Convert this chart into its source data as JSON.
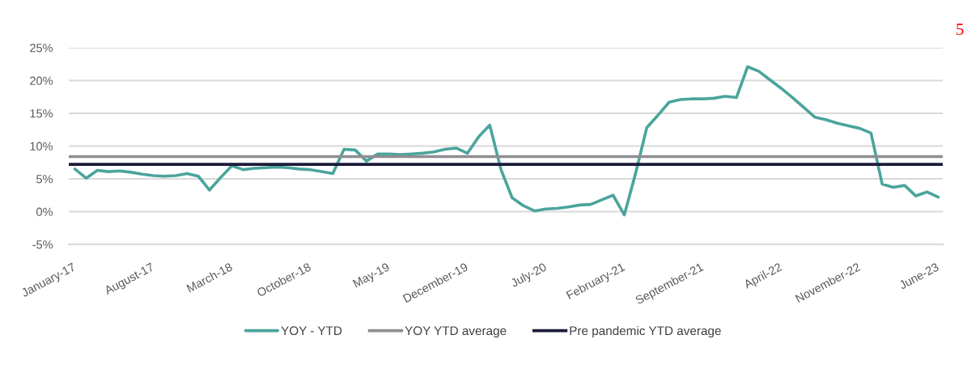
{
  "chart_data": {
    "type": "line",
    "categories": [
      "January-17",
      null,
      null,
      null,
      null,
      null,
      null,
      "August-17",
      null,
      null,
      null,
      null,
      null,
      null,
      "March-18",
      null,
      null,
      null,
      null,
      null,
      null,
      "October-18",
      null,
      null,
      null,
      null,
      null,
      null,
      "May-19",
      null,
      null,
      null,
      null,
      null,
      null,
      "December-19",
      null,
      null,
      null,
      null,
      null,
      null,
      "July-20",
      null,
      null,
      null,
      null,
      null,
      null,
      "February-21",
      null,
      null,
      null,
      null,
      null,
      null,
      "September-21",
      null,
      null,
      null,
      null,
      null,
      null,
      "April-22",
      null,
      null,
      null,
      null,
      null,
      null,
      "November-22",
      null,
      null,
      null,
      null,
      null,
      null,
      "June-23"
    ],
    "series": [
      {
        "name": "YOY - YTD",
        "color": "#4aa59c",
        "values": [
          6.5,
          5.1,
          6.3,
          6.1,
          6.2,
          6.0,
          5.7,
          5.5,
          5.4,
          5.5,
          5.8,
          5.4,
          3.3,
          5.2,
          7.0,
          6.4,
          6.6,
          6.7,
          6.8,
          6.7,
          6.5,
          6.4,
          6.1,
          5.8,
          9.5,
          9.4,
          7.7,
          8.8,
          8.8,
          8.7,
          8.8,
          8.9,
          9.1,
          9.5,
          9.7,
          8.9,
          11.4,
          13.2,
          6.4,
          2.1,
          0.9,
          0.1,
          0.4,
          0.5,
          0.7,
          1.0,
          1.1,
          1.8,
          2.5,
          -0.5,
          5.8,
          12.8,
          14.7,
          16.7,
          17.1,
          17.2,
          17.2,
          17.3,
          17.6,
          17.4,
          22.1,
          21.4,
          20.1,
          18.8,
          17.4,
          15.9,
          14.4,
          14.0,
          13.5,
          13.1,
          12.7,
          12.0,
          4.2,
          3.7,
          4.0,
          2.4,
          3.0,
          2.2
        ]
      }
    ],
    "ref_lines": [
      {
        "axis": "y",
        "value": 8.4,
        "label": "YOY YTD average",
        "color": "#8e8e92"
      },
      {
        "axis": "y",
        "value": 7.2,
        "label": "Pre pandemic YTD average",
        "color": "#1b1b3a"
      }
    ],
    "ylim": [
      -5,
      25
    ],
    "yticks": [
      {
        "value": -5,
        "label": "-5%"
      },
      {
        "value": 0,
        "label": "0%"
      },
      {
        "value": 5,
        "label": "5%"
      },
      {
        "value": 10,
        "label": "10%"
      },
      {
        "value": 15,
        "label": "15%"
      },
      {
        "value": 20,
        "label": "20%"
      },
      {
        "value": 25,
        "label": "25%"
      }
    ],
    "grid": "y",
    "legend": "bottom",
    "annotations": [
      "5"
    ]
  }
}
